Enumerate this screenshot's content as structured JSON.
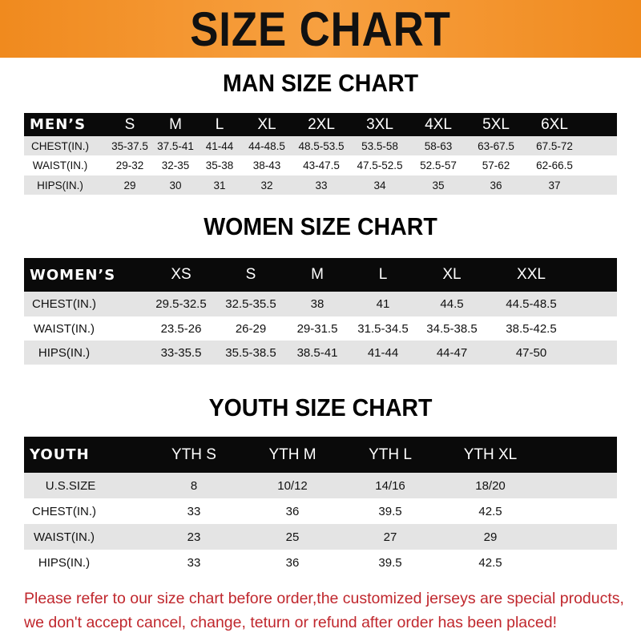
{
  "banner": {
    "title": "SIZE CHART"
  },
  "men": {
    "title": "MAN SIZE CHART",
    "header": [
      "MEN’S",
      "S",
      "M",
      "L",
      "XL",
      "2XL",
      "3XL",
      "4XL",
      "5XL",
      "6XL"
    ],
    "rows": [
      [
        "CHEST(IN.)",
        "35-37.5",
        "37.5-41",
        "41-44",
        "44-48.5",
        "48.5-53.5",
        "53.5-58",
        "58-63",
        "63-67.5",
        "67.5-72"
      ],
      [
        "WAIST(IN.)",
        "29-32",
        "32-35",
        "35-38",
        "38-43",
        "43-47.5",
        "47.5-52.5",
        "52.5-57",
        "57-62",
        "62-66.5"
      ],
      [
        "HIPS(IN.)",
        "29",
        "30",
        "31",
        "32",
        "33",
        "34",
        "35",
        "36",
        "37"
      ]
    ]
  },
  "women": {
    "title": "WOMEN SIZE CHART",
    "header": [
      "WOMEN’S",
      "XS",
      "S",
      "M",
      "L",
      "XL",
      "XXL"
    ],
    "rows": [
      [
        "CHEST(IN.)",
        "29.5-32.5",
        "32.5-35.5",
        "38",
        "41",
        "44.5",
        "44.5-48.5"
      ],
      [
        "WAIST(IN.)",
        "23.5-26",
        "26-29",
        "29-31.5",
        "31.5-34.5",
        "34.5-38.5",
        "38.5-42.5"
      ],
      [
        "HIPS(IN.)",
        "33-35.5",
        "35.5-38.5",
        "38.5-41",
        "41-44",
        "44-47",
        "47-50"
      ]
    ]
  },
  "youth": {
    "title": "YOUTH SIZE CHART",
    "header": [
      "YOUTH",
      "YTH S",
      "YTH M",
      "YTH L",
      "YTH XL"
    ],
    "rows": [
      [
        "U.S.SIZE",
        "8",
        "10/12",
        "14/16",
        "18/20"
      ],
      [
        "CHEST(IN.)",
        "33",
        "36",
        "39.5",
        "42.5"
      ],
      [
        "WAIST(IN.)",
        "23",
        "25",
        "27",
        "29"
      ],
      [
        "HIPS(IN.)",
        "33",
        "36",
        "39.5",
        "42.5"
      ]
    ]
  },
  "footer": {
    "line1": "Please refer to our size chart before order,the customized jerseys are special products,",
    "line2": "we don't accept cancel, change, teturn or refund after order has been placed!"
  },
  "colors": {
    "banner": "#f08a1e",
    "header_row": "#0a0a0a",
    "stripe": "#e4e4e4",
    "notice": "#c0272d"
  }
}
